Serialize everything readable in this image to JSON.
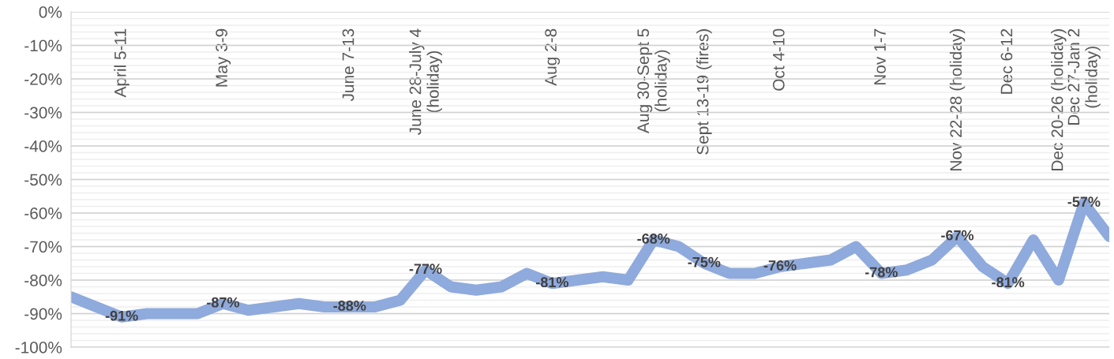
{
  "chart_data": {
    "type": "line",
    "categories": [
      null,
      null,
      "April 5-11",
      null,
      null,
      null,
      "May 3-9",
      null,
      null,
      null,
      null,
      "June 7-13",
      null,
      null,
      "June 28-July 4\n(holiday)",
      null,
      null,
      null,
      null,
      "Aug 2-8",
      null,
      null,
      null,
      "Aug 30-Sept 5\n(holiday)",
      null,
      "Sept 13-19 (fires)",
      null,
      null,
      "Oct 4-10",
      null,
      null,
      null,
      "Nov 1-7",
      null,
      null,
      "Nov 22-28 (holiday)",
      null,
      "Dec 6-12",
      null,
      "Dec 20-26 (holiday)",
      "Dec 27-Jan 2\n(holiday)",
      null
    ],
    "series": [
      {
        "color": "#8faadc",
        "values": [
          -85,
          -88,
          -91,
          -90,
          -90,
          -90,
          -87,
          -89,
          -88,
          -87,
          -88,
          -88,
          -88,
          -86,
          -77,
          -82,
          -83,
          -82,
          -78,
          -81,
          -80,
          -79,
          -80,
          -68,
          -70,
          -75,
          -78,
          -78,
          -76,
          -75,
          -74,
          -70,
          -78,
          -77,
          -74,
          -67,
          -76,
          -81,
          -68,
          -80,
          -57,
          -67
        ],
        "value_labels": [
          null,
          null,
          "-91%",
          null,
          null,
          null,
          "-87%",
          null,
          null,
          null,
          null,
          "-88%",
          null,
          null,
          "-77%",
          null,
          null,
          null,
          null,
          "-81%",
          null,
          null,
          null,
          "-68%",
          null,
          "-75%",
          null,
          null,
          "-76%",
          null,
          null,
          null,
          "-78%",
          null,
          null,
          "-67%",
          null,
          "-81%",
          null,
          null,
          "-57%",
          null
        ]
      }
    ],
    "ylim": [
      -100,
      0
    ],
    "yticks": [
      {
        "value": 0,
        "label": "0%"
      },
      {
        "value": -10,
        "label": "-10%"
      },
      {
        "value": -20,
        "label": "-20%"
      },
      {
        "value": -30,
        "label": "-30%"
      },
      {
        "value": -40,
        "label": "-40%"
      },
      {
        "value": -50,
        "label": "-50%"
      },
      {
        "value": -60,
        "label": "-60%"
      },
      {
        "value": -70,
        "label": "-70%"
      },
      {
        "value": -80,
        "label": "-80%"
      },
      {
        "value": -90,
        "label": "-90%"
      },
      {
        "value": -100,
        "label": "-100%"
      }
    ],
    "grid": "y",
    "marker": "none",
    "line_style": "solid"
  }
}
